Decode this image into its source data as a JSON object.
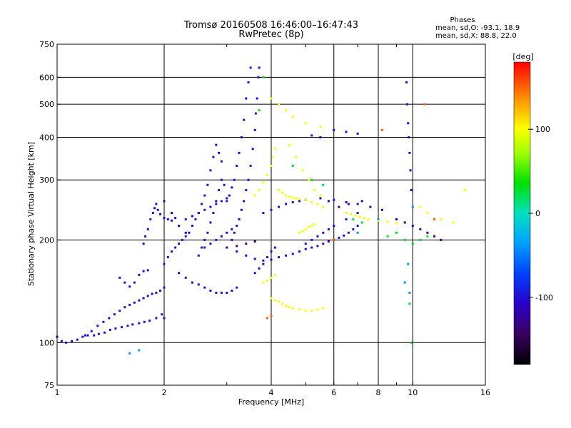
{
  "chart_data": {
    "type": "scatter",
    "title": "Tromsø 20160508 16:46:00–16:47:43",
    "subtitle": "RwPretec (8p)",
    "xlabel": "Frequency [MHz]",
    "ylabel": "Stationary phase Virtual Height [km]",
    "x_scale": "log",
    "y_scale": "log",
    "xlim": [
      1,
      16
    ],
    "ylim": [
      75,
      750
    ],
    "x_ticks": [
      1,
      2,
      4,
      6,
      8,
      10,
      16
    ],
    "y_ticks": [
      75,
      100,
      200,
      300,
      400,
      500,
      600,
      750
    ],
    "x_minor_ticks": [
      3,
      5,
      7,
      9
    ],
    "grid": true,
    "stats": {
      "heading": "Phases",
      "line_o": "mean, sd,O: -93.1, 18.9",
      "line_x": "mean, sd,X:  88.8, 22.0"
    },
    "colorbar": {
      "label": "[deg]",
      "ticks": [
        100,
        0,
        -100
      ],
      "range": [
        -180,
        180
      ],
      "colormap": "rainbow"
    },
    "series": [
      {
        "mode": "O",
        "phase_deg": -100,
        "points": [
          [
            1.0,
            104
          ],
          [
            1.03,
            101
          ],
          [
            1.06,
            100
          ],
          [
            1.1,
            101
          ],
          [
            1.14,
            102
          ],
          [
            1.18,
            104
          ],
          [
            1.22,
            105
          ],
          [
            1.27,
            105
          ],
          [
            1.31,
            106
          ],
          [
            1.36,
            107
          ],
          [
            1.41,
            109
          ],
          [
            1.46,
            110
          ],
          [
            1.52,
            111
          ],
          [
            1.58,
            112
          ],
          [
            1.63,
            113
          ],
          [
            1.7,
            114
          ],
          [
            1.76,
            115
          ],
          [
            1.82,
            116
          ],
          [
            1.9,
            118
          ],
          [
            1.97,
            121
          ],
          [
            2.0,
            118
          ],
          [
            1.2,
            105
          ],
          [
            1.25,
            108
          ],
          [
            1.3,
            112
          ],
          [
            1.35,
            115
          ],
          [
            1.4,
            118
          ],
          [
            1.45,
            121
          ],
          [
            1.5,
            124
          ],
          [
            1.55,
            127
          ],
          [
            1.6,
            129
          ],
          [
            1.65,
            131
          ],
          [
            1.7,
            133
          ],
          [
            1.75,
            135
          ],
          [
            1.8,
            137
          ],
          [
            1.85,
            139
          ],
          [
            1.9,
            140
          ],
          [
            1.95,
            142
          ],
          [
            2.0,
            145
          ],
          [
            1.5,
            155
          ],
          [
            1.55,
            150
          ],
          [
            1.6,
            146
          ],
          [
            1.65,
            150
          ],
          [
            1.7,
            158
          ],
          [
            1.75,
            162
          ],
          [
            1.8,
            163
          ],
          [
            1.75,
            195
          ],
          [
            1.77,
            205
          ],
          [
            1.8,
            215
          ],
          [
            1.83,
            230
          ],
          [
            1.86,
            240
          ],
          [
            1.88,
            248
          ],
          [
            1.9,
            255
          ],
          [
            1.92,
            245
          ],
          [
            1.95,
            238
          ],
          [
            2.0,
            232
          ],
          [
            2.05,
            230
          ],
          [
            2.1,
            228
          ],
          [
            2.15,
            232
          ],
          [
            2.0,
            170
          ],
          [
            2.05,
            178
          ],
          [
            2.1,
            185
          ],
          [
            2.15,
            190
          ],
          [
            2.2,
            195
          ],
          [
            2.25,
            200
          ],
          [
            2.3,
            205
          ],
          [
            2.35,
            210
          ],
          [
            2.4,
            220
          ],
          [
            2.45,
            230
          ],
          [
            2.5,
            240
          ],
          [
            2.55,
            255
          ],
          [
            2.6,
            270
          ],
          [
            2.65,
            290
          ],
          [
            2.7,
            320
          ],
          [
            2.75,
            350
          ],
          [
            2.8,
            380
          ],
          [
            2.85,
            360
          ],
          [
            2.9,
            340
          ],
          [
            2.2,
            160
          ],
          [
            2.3,
            155
          ],
          [
            2.4,
            150
          ],
          [
            2.5,
            148
          ],
          [
            2.6,
            145
          ],
          [
            2.7,
            142
          ],
          [
            2.8,
            140
          ],
          [
            2.9,
            140
          ],
          [
            3.0,
            140
          ],
          [
            3.1,
            142
          ],
          [
            3.2,
            145
          ],
          [
            2.5,
            180
          ],
          [
            2.55,
            190
          ],
          [
            2.6,
            200
          ],
          [
            2.65,
            210
          ],
          [
            2.7,
            225
          ],
          [
            2.75,
            240
          ],
          [
            2.8,
            260
          ],
          [
            2.85,
            280
          ],
          [
            2.9,
            300
          ],
          [
            2.95,
            290
          ],
          [
            3.0,
            260
          ],
          [
            3.05,
            270
          ],
          [
            3.1,
            285
          ],
          [
            3.15,
            300
          ],
          [
            3.2,
            330
          ],
          [
            3.25,
            360
          ],
          [
            3.3,
            400
          ],
          [
            3.35,
            450
          ],
          [
            3.4,
            520
          ],
          [
            3.45,
            580
          ],
          [
            3.5,
            640
          ],
          [
            3.1,
            200
          ],
          [
            3.15,
            210
          ],
          [
            3.2,
            220
          ],
          [
            3.25,
            230
          ],
          [
            3.3,
            245
          ],
          [
            3.35,
            260
          ],
          [
            3.4,
            280
          ],
          [
            3.45,
            300
          ],
          [
            3.5,
            330
          ],
          [
            3.55,
            370
          ],
          [
            3.6,
            420
          ],
          [
            3.62,
            470
          ],
          [
            3.65,
            520
          ],
          [
            3.68,
            600
          ],
          [
            3.7,
            640
          ],
          [
            3.2,
            185
          ],
          [
            3.4,
            180
          ],
          [
            3.6,
            176
          ],
          [
            3.8,
            174
          ],
          [
            4.0,
            175
          ],
          [
            4.2,
            178
          ],
          [
            4.4,
            180
          ],
          [
            4.6,
            182
          ],
          [
            4.8,
            185
          ],
          [
            5.0,
            188
          ],
          [
            5.2,
            190
          ],
          [
            5.4,
            192
          ],
          [
            5.6,
            195
          ],
          [
            5.8,
            198
          ],
          [
            6.0,
            200
          ],
          [
            6.2,
            203
          ],
          [
            6.4,
            206
          ],
          [
            6.6,
            210
          ],
          [
            6.8,
            215
          ],
          [
            7.0,
            220
          ],
          [
            3.8,
            240
          ],
          [
            4.0,
            245
          ],
          [
            4.2,
            250
          ],
          [
            4.4,
            255
          ],
          [
            4.6,
            258
          ],
          [
            4.8,
            260
          ],
          [
            5.0,
            262
          ],
          [
            5.5,
            265
          ],
          [
            6.0,
            262
          ],
          [
            6.5,
            258
          ],
          [
            7.0,
            255
          ],
          [
            3.6,
            160
          ],
          [
            3.7,
            165
          ],
          [
            3.8,
            170
          ],
          [
            3.9,
            178
          ],
          [
            4.0,
            185
          ],
          [
            4.1,
            190
          ],
          [
            2.3,
            230
          ],
          [
            2.4,
            235
          ],
          [
            2.5,
            240
          ],
          [
            2.6,
            245
          ],
          [
            2.7,
            250
          ],
          [
            2.8,
            255
          ],
          [
            2.9,
            260
          ],
          [
            3.0,
            265
          ],
          [
            2.6,
            190
          ],
          [
            2.7,
            195
          ],
          [
            2.8,
            200
          ],
          [
            2.9,
            205
          ],
          [
            3.0,
            210
          ],
          [
            3.1,
            215
          ],
          [
            5.0,
            195
          ],
          [
            5.2,
            200
          ],
          [
            5.4,
            205
          ],
          [
            5.6,
            210
          ],
          [
            5.8,
            215
          ],
          [
            6.0,
            220
          ],
          [
            6.5,
            230
          ],
          [
            7.0,
            240
          ],
          [
            9.6,
            580
          ],
          [
            9.65,
            500
          ],
          [
            9.7,
            440
          ],
          [
            9.75,
            400
          ],
          [
            9.8,
            360
          ],
          [
            9.85,
            320
          ],
          [
            9.9,
            280
          ],
          [
            6.0,
            420
          ],
          [
            6.5,
            415
          ],
          [
            7.0,
            410
          ],
          [
            5.5,
            400
          ],
          [
            5.2,
            405
          ]
        ]
      },
      {
        "mode": "X",
        "phase_deg": 100,
        "points": [
          [
            3.8,
            150
          ],
          [
            3.9,
            152
          ],
          [
            4.0,
            155
          ],
          [
            4.1,
            158
          ],
          [
            4.0,
            135
          ],
          [
            4.1,
            133
          ],
          [
            4.2,
            132
          ],
          [
            4.3,
            130
          ],
          [
            4.4,
            128
          ],
          [
            4.5,
            127
          ],
          [
            4.6,
            126
          ],
          [
            4.8,
            125
          ],
          [
            5.0,
            124
          ],
          [
            5.2,
            124
          ],
          [
            5.4,
            125
          ],
          [
            5.6,
            126
          ],
          [
            3.6,
            270
          ],
          [
            3.7,
            280
          ],
          [
            3.8,
            295
          ],
          [
            3.9,
            310
          ],
          [
            4.0,
            330
          ],
          [
            4.05,
            350
          ],
          [
            4.1,
            370
          ],
          [
            4.2,
            280
          ],
          [
            4.3,
            275
          ],
          [
            4.4,
            270
          ],
          [
            4.5,
            268
          ],
          [
            4.6,
            266
          ],
          [
            4.7,
            265
          ],
          [
            4.8,
            264
          ],
          [
            5.0,
            262
          ],
          [
            5.2,
            258
          ],
          [
            5.4,
            255
          ],
          [
            5.6,
            250
          ],
          [
            4.8,
            210
          ],
          [
            4.9,
            212
          ],
          [
            5.0,
            215
          ],
          [
            5.1,
            218
          ],
          [
            5.2,
            220
          ],
          [
            5.3,
            222
          ],
          [
            6.5,
            240
          ],
          [
            6.7,
            238
          ],
          [
            6.9,
            236
          ],
          [
            7.1,
            234
          ],
          [
            7.3,
            232
          ],
          [
            7.5,
            230
          ],
          [
            8.0,
            228
          ],
          [
            8.5,
            226
          ],
          [
            9.0,
            224
          ],
          [
            4.0,
            520
          ],
          [
            4.2,
            500
          ],
          [
            4.4,
            480
          ],
          [
            4.6,
            460
          ],
          [
            5.0,
            440
          ],
          [
            5.5,
            430
          ],
          [
            4.5,
            380
          ],
          [
            4.7,
            350
          ],
          [
            4.9,
            320
          ],
          [
            5.1,
            300
          ],
          [
            5.3,
            280
          ],
          [
            5.5,
            270
          ],
          [
            10.5,
            250
          ],
          [
            11.0,
            240
          ],
          [
            12.0,
            230
          ],
          [
            13.0,
            225
          ],
          [
            14.0,
            280
          ]
        ]
      },
      {
        "mode": "scatter",
        "phase_deg": -130,
        "points": [
          [
            2.0,
            260
          ],
          [
            2.1,
            240
          ],
          [
            2.2,
            220
          ],
          [
            2.3,
            210
          ],
          [
            3.0,
            190
          ],
          [
            3.2,
            192
          ],
          [
            3.4,
            195
          ],
          [
            3.6,
            198
          ],
          [
            5.8,
            260
          ],
          [
            6.2,
            250
          ],
          [
            6.6,
            255
          ],
          [
            7.2,
            260
          ],
          [
            7.6,
            250
          ],
          [
            8.2,
            245
          ],
          [
            9.0,
            230
          ],
          [
            9.5,
            225
          ],
          [
            10.0,
            220
          ],
          [
            10.5,
            215
          ],
          [
            11.0,
            210
          ],
          [
            11.5,
            205
          ],
          [
            12.0,
            200
          ]
        ]
      },
      {
        "mode": "scatter",
        "phase_deg": 30,
        "points": [
          [
            8.5,
            205
          ],
          [
            9.0,
            210
          ],
          [
            9.5,
            200
          ],
          [
            10.0,
            195
          ],
          [
            10.5,
            200
          ],
          [
            11.0,
            205
          ],
          [
            6.8,
            230
          ],
          [
            7.2,
            225
          ],
          [
            5.2,
            300
          ],
          [
            5.6,
            290
          ],
          [
            4.6,
            330
          ],
          [
            3.7,
            480
          ],
          [
            3.8,
            600
          ],
          [
            9.8,
            130
          ],
          [
            9.9,
            100
          ]
        ]
      },
      {
        "mode": "scatter",
        "phase_deg": -40,
        "points": [
          [
            9.5,
            150
          ],
          [
            9.7,
            170
          ],
          [
            9.8,
            140
          ],
          [
            10.0,
            250
          ],
          [
            8.0,
            230
          ],
          [
            7.0,
            210
          ],
          [
            1.7,
            95
          ],
          [
            1.6,
            93
          ]
        ]
      },
      {
        "mode": "scatter",
        "phase_deg": 150,
        "points": [
          [
            4.0,
            120
          ],
          [
            3.9,
            118
          ],
          [
            6.0,
            200
          ],
          [
            11.5,
            230
          ],
          [
            10.8,
            500
          ],
          [
            8.2,
            420
          ]
        ]
      }
    ]
  }
}
